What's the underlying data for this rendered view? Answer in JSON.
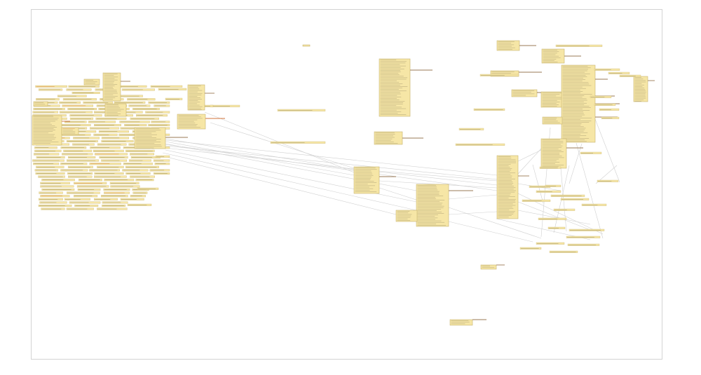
{
  "colors": {
    "background": "#ffffff",
    "frame_border": "#d3d3d3",
    "node_fill": "#f6e6a6",
    "node_border": "#c9b46f",
    "row_line": "#8f8460",
    "label_line": "#9a7a55",
    "accent": "#d2733a",
    "edge": "#d0d0d0"
  }
}
